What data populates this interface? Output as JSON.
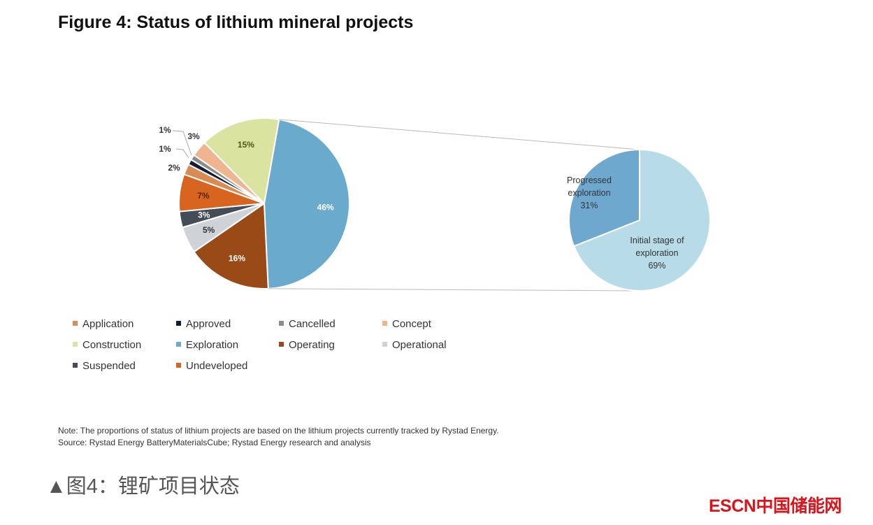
{
  "chart_data": {
    "type": "pie",
    "title": "Figure 4: Status of lithium mineral projects",
    "slices": [
      {
        "name": "Exploration",
        "value": 46,
        "label": "46%",
        "color": "#6aaacd",
        "label_color": "#ffffff"
      },
      {
        "name": "Operating",
        "value": 16,
        "label": "16%",
        "color": "#9a4a17",
        "label_color": "#ffffff"
      },
      {
        "name": "Operational",
        "value": 5,
        "label": "5%",
        "color": "#cfd3d8",
        "label_color": "#333333"
      },
      {
        "name": "Suspended",
        "value": 3,
        "label": "3%",
        "color": "#444c58",
        "label_color": "#ffffff"
      },
      {
        "name": "Undeveloped",
        "value": 7,
        "label": "7%",
        "color": "#d7651f",
        "label_color": "#5a1e00"
      },
      {
        "name": "Application",
        "value": 2,
        "label": "2%",
        "color": "#d98b55",
        "label_color": "#333333"
      },
      {
        "name": "Approved",
        "value": 1,
        "label": "1%",
        "color": "#0f1e33",
        "label_color": "#333333"
      },
      {
        "name": "Cancelled",
        "value": 1,
        "label": "1%",
        "color": "#8c8c8c",
        "label_color": "#333333"
      },
      {
        "name": "Concept",
        "value": 3,
        "label": "3%",
        "color": "#f0b48e",
        "label_color": "#333333"
      },
      {
        "name": "Construction",
        "value": 15,
        "label": "15%",
        "color": "#dbe3a0",
        "label_color": "#4a5a10"
      }
    ],
    "breakdown": {
      "of": "Exploration",
      "slices": [
        {
          "name": "Initial stage of exploration",
          "value": 69,
          "lines": [
            "Initial stage of",
            "exploration",
            "69%"
          ],
          "color": "#b8dbe8"
        },
        {
          "name": "Progressed exploration",
          "value": 31,
          "lines": [
            "Progressed",
            "exploration",
            "31%"
          ],
          "color": "#6fa8cf"
        }
      ]
    },
    "legend": [
      "Application",
      "Approved",
      "Cancelled",
      "Concept",
      "Construction",
      "Exploration",
      "Operating",
      "Operational",
      "Suspended",
      "Undeveloped"
    ],
    "legend_placement": "bottom"
  },
  "notes": {
    "note": "Note: The proportions of status of lithium projects are based on the lithium projects currently tracked by Rystad Energy.",
    "source": "Source: Rystad Energy BatteryMaterialsCube; Rystad Energy research and analysis"
  },
  "caption": "▲图4：锂矿项目状态",
  "logo": "ESCN中国储能网"
}
